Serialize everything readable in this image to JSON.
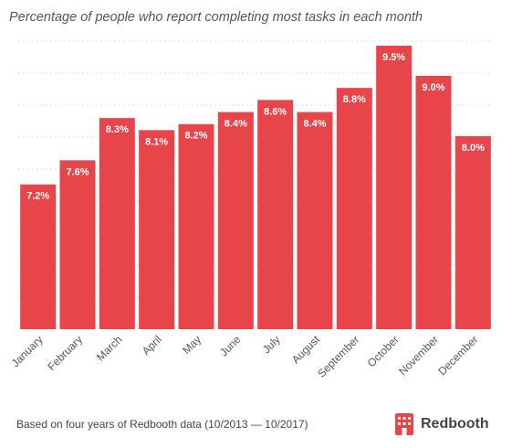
{
  "chart_data": {
    "type": "bar",
    "title": "Percentage of people who report completing most tasks in each month",
    "categories": [
      "January",
      "February",
      "March",
      "April",
      "May",
      "June",
      "July",
      "August",
      "September",
      "October",
      "November",
      "December"
    ],
    "values": [
      7.2,
      7.6,
      8.3,
      8.1,
      8.2,
      8.4,
      8.6,
      8.4,
      8.8,
      9.5,
      9.0,
      8.0
    ],
    "value_labels": [
      "7.2%",
      "7.6%",
      "8.3%",
      "8.1%",
      "8.2%",
      "8.4%",
      "8.6%",
      "8.4%",
      "8.8%",
      "9.5%",
      "9.0%",
      "8.0%"
    ],
    "xlabel": "",
    "ylabel": "",
    "ylim": [
      4.8,
      9.5
    ],
    "grid": true,
    "legend": "none",
    "bar_color": "#e8454a"
  },
  "footnote": "Based on four years of Redbooth data (10/2013 — 10/2017)",
  "brand": {
    "name": "Redbooth",
    "icon": "redbooth-logo-icon",
    "color": "#e8454a"
  }
}
